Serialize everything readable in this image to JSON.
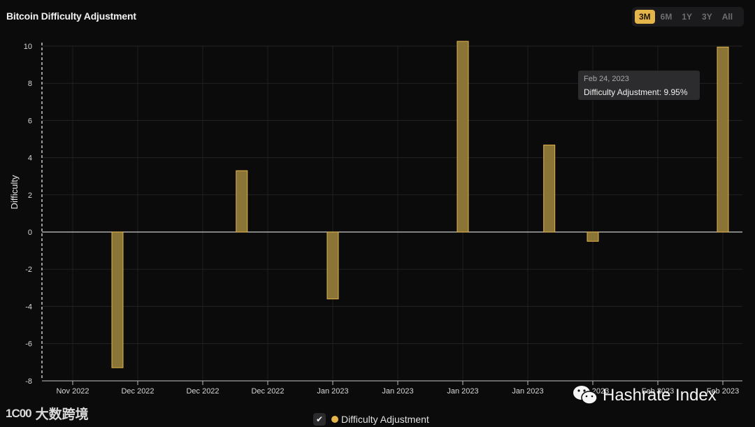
{
  "header": {
    "title": "Bitcoin Difficulty Adjustment",
    "ranges": [
      {
        "label": "3M",
        "active": true
      },
      {
        "label": "6M",
        "active": false
      },
      {
        "label": "1Y",
        "active": false
      },
      {
        "label": "3Y",
        "active": false
      },
      {
        "label": "All",
        "active": false
      }
    ]
  },
  "chart_data": {
    "type": "bar",
    "ylabel": "Difficulty",
    "ylim": [
      -8,
      10
    ],
    "yticks": [
      10,
      8,
      6,
      4,
      2,
      0,
      -2,
      -4,
      -6,
      -8
    ],
    "xticks": [
      "Nov 2022",
      "Dec 2022",
      "Dec 2022",
      "Dec 2022",
      "Jan 2023",
      "Jan 2023",
      "Jan 2023",
      "Jan 2023",
      "Feb 2023",
      "Feb 2023",
      "Feb 2023"
    ],
    "series": [
      {
        "name": "Difficulty Adjustment",
        "color": "#e3b54a",
        "points": [
          {
            "tick": 1,
            "value": -7.3
          },
          {
            "tick": 2.6,
            "value": 3.3
          },
          {
            "tick": 4,
            "value": -3.6
          },
          {
            "tick": 6,
            "value": 10.26
          },
          {
            "tick": 7.33,
            "value": 4.68
          },
          {
            "tick": 8,
            "value": -0.5
          },
          {
            "tick": 10,
            "value": 9.95
          }
        ]
      }
    ],
    "grid": true,
    "legend_position": "bottom-center"
  },
  "tooltip": {
    "date": "Feb 24, 2023",
    "text": "Difficulty Adjustment: 9.95%"
  },
  "legend": {
    "check": "✔",
    "label": "Difficulty Adjustment"
  },
  "watermarks": {
    "left_logo": "1C00",
    "left_text": "大数跨境",
    "right_text": "Hashrate Index"
  }
}
